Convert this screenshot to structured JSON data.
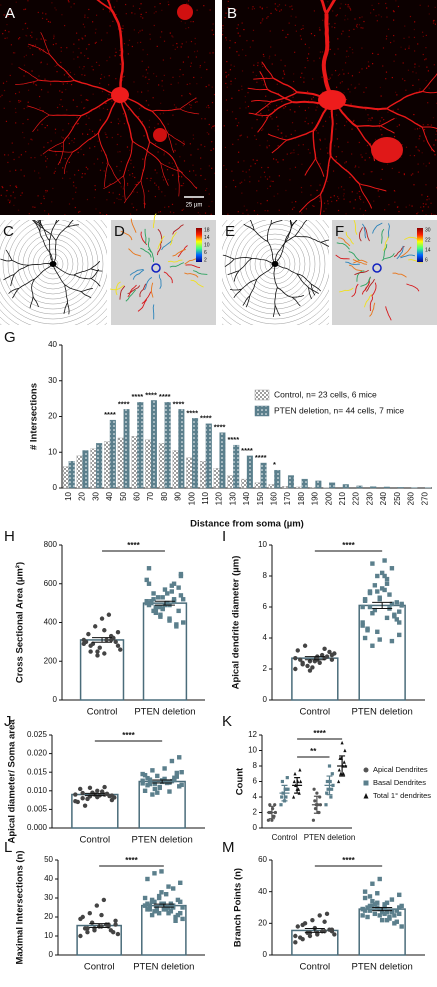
{
  "figure": {
    "panels": [
      "A",
      "B",
      "C",
      "D",
      "E",
      "F"
    ],
    "scale_bar": "25 µm",
    "colorbars": [
      {
        "ticks": [
          18,
          14,
          10,
          6,
          2
        ]
      },
      {
        "ticks": [
          30,
          22,
          14,
          6
        ]
      }
    ]
  },
  "chart_data": [
    {
      "type": "grouped_bar",
      "panel": "G",
      "y_label": "# Intersections",
      "x_label": "Distance from soma (µm)",
      "categories": [
        "10",
        "20",
        "30",
        "40",
        "50",
        "60",
        "70",
        "80",
        "90",
        "100",
        "110",
        "120",
        "130",
        "140",
        "150",
        "160",
        "170",
        "180",
        "190",
        "200",
        "210",
        "220",
        "230",
        "240",
        "250",
        "260",
        "270"
      ],
      "series": [
        {
          "name": "Control, n= 23 cells, 6 mice",
          "color": "#9e9e9e",
          "pattern": "checker",
          "values": [
            6,
            9,
            11,
            13,
            14,
            14.5,
            13.5,
            12.5,
            10.5,
            8.5,
            7.5,
            5.5,
            3.5,
            2.5,
            1.5,
            1,
            0.5,
            0.3,
            0.2,
            0.1,
            0,
            0,
            0,
            0,
            0,
            0,
            0
          ]
        },
        {
          "name": "PTEN deletion, n= 44 cells, 7 mice",
          "color": "#5b7f8c",
          "pattern": "dots",
          "values": [
            7.5,
            10.5,
            12.5,
            19,
            22,
            24,
            24.5,
            24,
            22,
            19.5,
            18,
            15.5,
            12,
            9,
            7,
            5,
            3.5,
            2.5,
            2,
            1.5,
            1,
            0.6,
            0.4,
            0.3,
            0.2,
            0.1,
            0.1
          ]
        }
      ],
      "significance": [
        null,
        null,
        null,
        "****",
        "****",
        "****",
        "****",
        "****",
        "****",
        "****",
        "****",
        "****",
        "****",
        "****",
        "****",
        "*",
        null,
        null,
        null,
        null,
        null,
        null,
        null,
        null,
        null,
        null,
        null
      ],
      "ylim": [
        0,
        40
      ],
      "yticks": [
        0,
        10,
        20,
        30,
        40
      ]
    },
    {
      "type": "bar_scatter",
      "panel": "H",
      "y_label": "Cross Sectional Area (µm²)",
      "categories": [
        "Control",
        "PTEN deletion"
      ],
      "values": [
        310,
        500
      ],
      "errors": [
        12,
        10
      ],
      "colors": [
        "#444444",
        "#5b7f8c"
      ],
      "significance": "****",
      "points": [
        [
          310,
          280,
          250,
          240,
          330,
          350,
          300,
          290,
          270,
          310,
          320,
          260,
          340,
          380,
          420,
          440,
          300,
          290,
          250,
          230,
          360,
          310,
          280
        ],
        [
          500,
          520,
          480,
          550,
          600,
          650,
          680,
          450,
          470,
          420,
          380,
          400,
          510,
          530,
          490,
          560,
          580,
          620,
          460,
          440,
          500,
          510,
          540,
          490,
          470,
          530,
          410,
          390,
          520,
          500,
          480,
          570,
          590,
          460,
          510,
          550,
          430,
          500,
          520,
          640,
          600,
          480,
          470,
          490
        ]
      ],
      "ylim": [
        0,
        800
      ],
      "yticks": [
        0,
        200,
        400,
        600,
        800
      ]
    },
    {
      "type": "bar_scatter",
      "panel": "I",
      "y_label": "Apical dendrite diameter (µm)",
      "categories": [
        "Control",
        "PTEN deletion"
      ],
      "values": [
        2.7,
        6.1
      ],
      "errors": [
        0.1,
        0.2
      ],
      "colors": [
        "#444444",
        "#5b7f8c"
      ],
      "significance": "****",
      "points": [
        [
          2.0,
          2.3,
          2.5,
          2.6,
          2.7,
          2.9,
          3.2,
          3.5,
          2.1,
          2.4,
          2.8,
          3.0,
          2.6,
          2.2,
          2.5,
          2.9,
          3.1,
          2.7,
          2.4,
          1.9,
          2.8,
          3.3,
          2.6
        ],
        [
          6,
          7,
          8,
          9,
          8.5,
          5,
          4,
          3.5,
          6.5,
          7.5,
          5.5,
          6.2,
          4.5,
          5.8,
          7.2,
          6.8,
          5.2,
          4.8,
          6,
          7,
          8,
          3.8,
          4.2,
          6.4,
          5.6,
          6.6,
          7.8,
          5.4,
          6.1,
          4.6,
          7.4,
          8.2,
          5.9,
          6.3,
          5,
          6.9,
          4.4,
          7.1,
          6.2,
          5.7,
          6.5,
          8.8,
          3.9,
          5.3
        ]
      ],
      "ylim": [
        0,
        10
      ],
      "yticks": [
        0,
        2,
        4,
        6,
        8,
        10
      ]
    },
    {
      "type": "bar_scatter",
      "panel": "J",
      "y_label": "Apical diameter/ Soma area",
      "categories": [
        "Control",
        "PTEN deletion"
      ],
      "values": [
        0.009,
        0.0125
      ],
      "errors": [
        0.0003,
        0.0004
      ],
      "colors": [
        "#444444",
        "#5b7f8c"
      ],
      "significance": "****",
      "points": [
        [
          0.009,
          0.008,
          0.0085,
          0.01,
          0.011,
          0.0075,
          0.007,
          0.006,
          0.0095,
          0.0088,
          0.0092,
          0.0082,
          0.0105,
          0.0078,
          0.009,
          0.0098,
          0.0086,
          0.0072,
          0.0094,
          0.0108,
          0.0083,
          0.009,
          0.0087
        ],
        [
          0.012,
          0.013,
          0.014,
          0.016,
          0.018,
          0.019,
          0.01,
          0.009,
          0.011,
          0.0125,
          0.0135,
          0.015,
          0.0115,
          0.0105,
          0.0128,
          0.0122,
          0.0138,
          0.0145,
          0.0118,
          0.0095,
          0.0132,
          0.0126,
          0.0112,
          0.0142,
          0.0155,
          0.0108,
          0.0121,
          0.0129,
          0.0116,
          0.0134,
          0.0119,
          0.0124,
          0.0098,
          0.0148,
          0.0127
        ]
      ],
      "ylim": [
        0,
        0.025
      ],
      "yticks": [
        {
          "value": 0,
          "label": "0.000"
        },
        {
          "value": 0.005,
          "label": "0.005"
        },
        {
          "value": 0.01,
          "label": "0.010"
        },
        {
          "value": 0.015,
          "label": "0.015"
        },
        {
          "value": 0.02,
          "label": "0.020"
        },
        {
          "value": 0.025,
          "label": "0.025"
        }
      ]
    },
    {
      "type": "multi_scatter",
      "panel": "K",
      "y_label": "Count",
      "categories": [
        "Control",
        "PTEN deletion"
      ],
      "series": [
        {
          "name": "Apical Dendrites",
          "marker": "circle",
          "color": "#555555",
          "values": [
            2,
            3
          ],
          "errors": [
            0.8,
            1.1
          ],
          "points": [
            [
              1,
              1.5,
              2,
              2,
              2.5,
              3,
              3,
              1,
              2,
              1.5
            ],
            [
              1,
              2,
              2.5,
              3,
              3,
              3.5,
              4,
              4.5,
              5,
              2,
              3
            ]
          ]
        },
        {
          "name": "Basal Dendrites",
          "marker": "square",
          "color": "#5b7f8c",
          "values": [
            4.5,
            5.5
          ],
          "errors": [
            1,
            1.2
          ],
          "points": [
            [
              3,
              4,
              4.5,
              5,
              5,
              6,
              6.5,
              3.5,
              4,
              5
            ],
            [
              3,
              4,
              5,
              5.5,
              6,
              6,
              7,
              8,
              4.5,
              5
            ]
          ]
        },
        {
          "name": "Total 1° dendrites",
          "marker": "triangle",
          "color": "#111111",
          "values": [
            5.5,
            8
          ],
          "errors": [
            1,
            1.3
          ],
          "points": [
            [
              4,
              5,
              5.5,
              6,
              6,
              7,
              7.5,
              5,
              6,
              4.5
            ],
            [
              6,
              7,
              7,
              8,
              8,
              9,
              10,
              11,
              7.5,
              8.5,
              9
            ]
          ]
        }
      ],
      "significance": [
        "**",
        "****"
      ],
      "ylim": [
        0,
        12
      ],
      "yticks": [
        0,
        2,
        4,
        6,
        8,
        10,
        12
      ]
    },
    {
      "type": "bar_scatter",
      "panel": "L",
      "y_label": "Maximal Intersections (n)",
      "categories": [
        "Control",
        "PTEN deletion"
      ],
      "values": [
        15.5,
        26
      ],
      "errors": [
        1,
        0.8
      ],
      "colors": [
        "#444444",
        "#5b7f8c"
      ],
      "significance": "****",
      "points": [
        [
          10,
          12,
          14,
          15,
          16,
          18,
          20,
          22,
          26,
          29,
          13,
          11,
          14,
          17,
          15,
          16,
          12,
          19,
          14,
          13,
          21,
          15,
          16
        ],
        [
          26,
          28,
          30,
          32,
          35,
          38,
          40,
          43,
          44,
          22,
          20,
          19,
          24,
          25,
          27,
          23,
          21,
          26,
          29,
          31,
          24,
          25,
          22,
          27,
          28,
          33,
          36,
          18,
          25,
          26,
          23,
          24,
          27,
          29,
          30,
          21,
          22,
          25,
          26,
          28,
          24,
          23,
          27,
          25
        ]
      ],
      "ylim": [
        0,
        50
      ],
      "yticks": [
        0,
        10,
        20,
        30,
        40,
        50
      ]
    },
    {
      "type": "bar_scatter",
      "panel": "M",
      "y_label": "Branch Points (n)",
      "categories": [
        "Control",
        "PTEN deletion"
      ],
      "values": [
        15.5,
        29
      ],
      "errors": [
        1.2,
        1
      ],
      "colors": [
        "#444444",
        "#5b7f8c"
      ],
      "significance": "****",
      "points": [
        [
          8,
          10,
          12,
          14,
          15,
          16,
          18,
          20,
          22,
          25,
          26,
          13,
          11,
          14,
          17,
          15,
          16,
          12,
          19,
          14,
          13,
          21,
          15
        ],
        [
          25,
          28,
          30,
          32,
          35,
          38,
          40,
          45,
          48,
          22,
          20,
          18,
          24,
          26,
          27,
          23,
          21,
          29,
          31,
          33,
          30,
          28,
          26,
          36,
          34,
          29,
          27,
          25,
          31,
          30,
          32,
          22,
          24,
          28,
          29,
          37,
          39,
          26,
          27,
          30,
          28,
          31,
          25,
          33
        ]
      ],
      "ylim": [
        0,
        60
      ],
      "yticks": [
        0,
        20,
        40,
        60
      ]
    }
  ]
}
